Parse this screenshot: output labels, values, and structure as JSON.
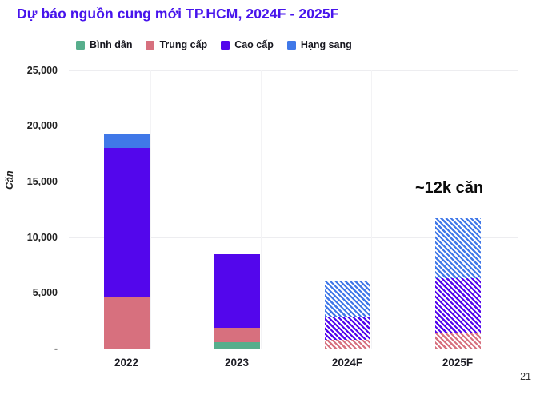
{
  "slide": {
    "title": "Dự báo nguồn cung mới TP.HCM, 2024F - 2025F",
    "title_color": "#4714EC",
    "page_number": "21"
  },
  "chart_data": {
    "type": "bar",
    "stacked": true,
    "title": "Dự báo nguồn cung mới TP.HCM, 2024F - 2025F",
    "ylabel": "Căn",
    "categories": [
      "2022",
      "2023",
      "2024F",
      "2025F"
    ],
    "series": [
      {
        "name": "Bình dân",
        "color": "#57AE8C",
        "values": [
          0,
          600,
          0,
          0
        ]
      },
      {
        "name": "Trung cấp",
        "color": "#D7707E",
        "values": [
          4600,
          1300,
          800,
          1400
        ]
      },
      {
        "name": "Cao cấp",
        "color": "#5306EC",
        "values": [
          13400,
          6600,
          2100,
          4900
        ]
      },
      {
        "name": "Hạng sang",
        "color": "#4078E8",
        "values": [
          1200,
          100,
          3100,
          5400
        ]
      }
    ],
    "hatched_categories": [
      "2024F",
      "2025F"
    ],
    "ylim": [
      0,
      25000
    ],
    "ytick_step": 5000,
    "ytick_labels": [
      "-",
      "5,000",
      "10,000",
      "15,000",
      "20,000",
      "25,000"
    ],
    "grid": "horizontal",
    "legend_position": "top",
    "annotation": {
      "text": "~12k căn",
      "target_category": "2025F"
    }
  }
}
